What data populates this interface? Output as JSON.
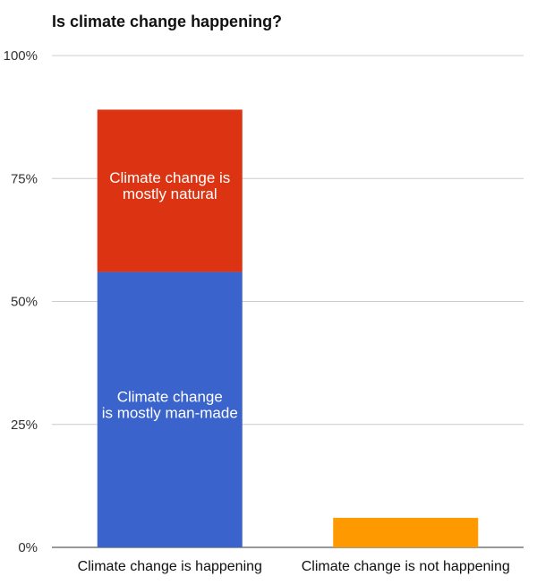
{
  "chart_data": {
    "type": "bar",
    "stacked": true,
    "title": "Is climate change happening?",
    "xlabel": "",
    "ylabel": "",
    "ylim": [
      0,
      100
    ],
    "yticks": [
      {
        "value": 0,
        "label": "0%"
      },
      {
        "value": 25,
        "label": "25%"
      },
      {
        "value": 50,
        "label": "50%"
      },
      {
        "value": 75,
        "label": "75%"
      },
      {
        "value": 100,
        "label": "100%"
      }
    ],
    "grid": true,
    "categories": [
      "Climate change is happening",
      "Climate change is not happening"
    ],
    "series": [
      {
        "name": "Climate change is mostly man-made",
        "color": "#3a63cc",
        "values": [
          56,
          0
        ]
      },
      {
        "name": "Climate change is mostly natural",
        "color": "#dc3412",
        "values": [
          33,
          0
        ]
      },
      {
        "name": "",
        "color": "#ff9900",
        "values": [
          0,
          6
        ]
      }
    ],
    "segment_labels": [
      {
        "series": 1,
        "category": 0,
        "lines": [
          "Climate change is",
          "mostly natural"
        ]
      },
      {
        "series": 0,
        "category": 0,
        "lines": [
          "Climate change",
          "is mostly man-made"
        ]
      }
    ]
  }
}
